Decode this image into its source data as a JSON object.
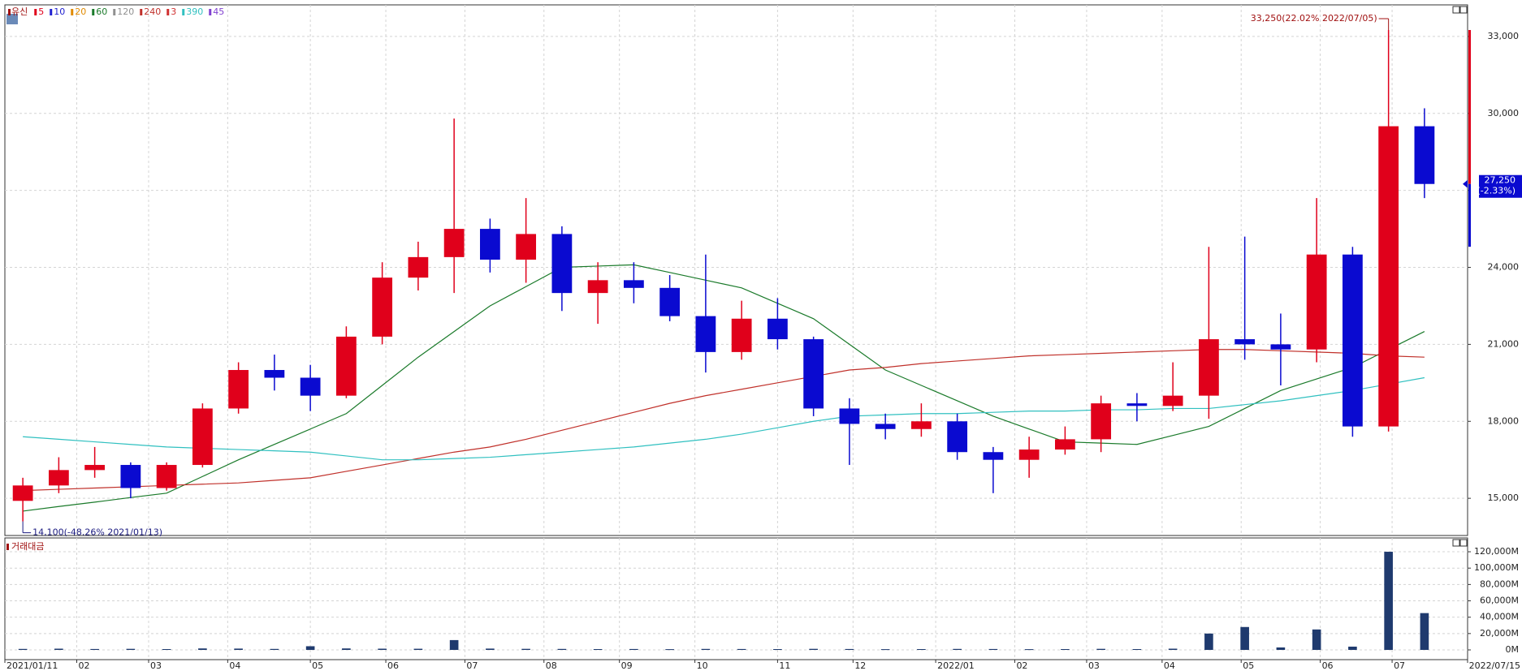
{
  "chart_data": {
    "type": "candlestick",
    "stock_name": "유신",
    "stock_color": "#a01010",
    "legend": [
      {
        "name": "5",
        "color": "#e0001b"
      },
      {
        "name": "10",
        "color": "#2020d0"
      },
      {
        "name": "20",
        "color": "#e08a00"
      },
      {
        "name": "60",
        "color": "#1a7a2a"
      },
      {
        "name": "120",
        "color": "#909090"
      },
      {
        "name": "240",
        "color": "#c0302a"
      },
      {
        "name": "3",
        "color": "#d03030"
      },
      {
        "name": "390",
        "color": "#30c0c0"
      },
      {
        "name": "45",
        "color": "#8040d0"
      }
    ],
    "up_color": "#e0001b",
    "down_color": "#0a0ad0",
    "open": [
      14900,
      15500,
      16100,
      16300,
      15400,
      16300,
      18500,
      20000,
      19700,
      19000,
      21300,
      23600,
      24400,
      25500,
      24300,
      25300,
      23000,
      23500,
      23200,
      22100,
      20700,
      22000,
      21200,
      18500,
      17900,
      17700,
      18000,
      16800,
      16500,
      16900,
      17300,
      18700,
      18600,
      19000,
      21200,
      21000,
      20800,
      24500,
      17800,
      29500
    ],
    "high": [
      15800,
      16600,
      17000,
      16400,
      16400,
      18700,
      20300,
      20600,
      20200,
      21700,
      24200,
      25000,
      29800,
      25900,
      26700,
      25600,
      24200,
      24200,
      23700,
      24500,
      22700,
      22800,
      21300,
      18900,
      18300,
      18700,
      18300,
      17000,
      17400,
      17800,
      19000,
      19100,
      20300,
      24800,
      25200,
      22200,
      26700,
      24800,
      33250,
      30200
    ],
    "low": [
      14100,
      15200,
      15800,
      15000,
      15300,
      16200,
      18300,
      19200,
      18400,
      18900,
      21000,
      23100,
      23000,
      23800,
      23400,
      22300,
      21800,
      22600,
      21900,
      19900,
      20400,
      20800,
      18200,
      16300,
      17300,
      17400,
      16500,
      15200,
      15800,
      16700,
      16800,
      18000,
      18400,
      18100,
      20400,
      19400,
      20300,
      17400,
      17600,
      26700
    ],
    "close": [
      15500,
      16100,
      16300,
      15400,
      16300,
      18500,
      20000,
      19700,
      19000,
      21300,
      23600,
      24400,
      25500,
      24300,
      25300,
      23000,
      23500,
      23200,
      22100,
      20700,
      22000,
      21200,
      18500,
      17900,
      17700,
      18000,
      16800,
      16500,
      16900,
      17300,
      18700,
      18600,
      19000,
      21200,
      21000,
      20800,
      24500,
      17800,
      29500,
      27250
    ],
    "series": [
      {
        "name": "60",
        "color": "#1a7a2a",
        "values": [
          14500,
          14680,
          14850,
          15030,
          15200,
          15850,
          16500,
          17100,
          17700,
          18300,
          19400,
          20500,
          21500,
          22500,
          23250,
          24000,
          24050,
          24100,
          23800,
          23500,
          23200,
          22600,
          22000,
          21000,
          20000,
          19400,
          18800,
          18200,
          17700,
          17200,
          17150,
          17100,
          17450,
          17800,
          18500,
          19200,
          19650,
          20100,
          20800,
          21500
        ]
      },
      {
        "name": "240",
        "color": "#c0302a",
        "values": [
          15300,
          15350,
          15400,
          15450,
          15500,
          15550,
          15600,
          15700,
          15800,
          16050,
          16300,
          16550,
          16800,
          17000,
          17300,
          17650,
          18000,
          18350,
          18700,
          19000,
          19250,
          19500,
          19750,
          20000,
          20100,
          20250,
          20350,
          20450,
          20550,
          20600,
          20650,
          20700,
          20750,
          20800,
          20800,
          20750,
          20700,
          20650,
          20550,
          20500
        ]
      },
      {
        "name": "390",
        "color": "#30c0c0",
        "values": [
          17400,
          17300,
          17200,
          17100,
          17000,
          16950,
          16900,
          16850,
          16800,
          16650,
          16500,
          16500,
          16550,
          16600,
          16700,
          16800,
          16900,
          17000,
          17150,
          17300,
          17500,
          17750,
          18000,
          18200,
          18250,
          18300,
          18300,
          18350,
          18400,
          18400,
          18450,
          18450,
          18500,
          18500,
          18650,
          18800,
          19000,
          19200,
          19450,
          19700
        ]
      }
    ],
    "ylim": [
      13550,
      34230
    ],
    "yticks": [
      {
        "value": 15000,
        "label": "15,000"
      },
      {
        "value": 18000,
        "label": "18,000"
      },
      {
        "value": 21000,
        "label": "21,000"
      },
      {
        "value": 24000,
        "label": "24,000"
      },
      {
        "value": 27000,
        "label": "27,000"
      },
      {
        "value": 30000,
        "label": "30,000"
      },
      {
        "value": 33000,
        "label": "33,000"
      }
    ],
    "xlim": [
      -0.5,
      40.2
    ],
    "xticks": [
      {
        "value": -0.5,
        "label": "2021/01/11"
      },
      {
        "value": 1.5,
        "label": "02"
      },
      {
        "value": 3.5,
        "label": "03"
      },
      {
        "value": 5.7,
        "label": "04"
      },
      {
        "value": 8.0,
        "label": "05"
      },
      {
        "value": 10.1,
        "label": "06"
      },
      {
        "value": 12.3,
        "label": "07"
      },
      {
        "value": 14.5,
        "label": "08"
      },
      {
        "value": 16.6,
        "label": "09"
      },
      {
        "value": 18.7,
        "label": "10"
      },
      {
        "value": 21.0,
        "label": "11"
      },
      {
        "value": 23.1,
        "label": "12"
      },
      {
        "value": 25.4,
        "label": "2022/01"
      },
      {
        "value": 27.6,
        "label": "02"
      },
      {
        "value": 29.6,
        "label": "03"
      },
      {
        "value": 31.7,
        "label": "04"
      },
      {
        "value": 33.9,
        "label": "05"
      },
      {
        "value": 36.1,
        "label": "06"
      },
      {
        "value": 38.1,
        "label": "07"
      },
      {
        "value": 40.2,
        "label": "2022/07/15"
      }
    ],
    "grid": true,
    "max_annotation": "33,250(22.02% 2022/07/05)",
    "min_annotation": "14,100(-48.26% 2021/01/13)",
    "current_price": {
      "value": 27250,
      "label": "27,250"
    },
    "current_change": "(-2.33%)",
    "volume": {
      "title": "거래대금",
      "color": "#1f3a6e",
      "values": [
        1200,
        1500,
        1100,
        1300,
        1000,
        1800,
        1600,
        1200,
        4500,
        1800,
        1500,
        1400,
        12000,
        1600,
        1300,
        1200,
        1000,
        1100,
        900,
        1200,
        1100,
        1000,
        1300,
        1100,
        900,
        1000,
        1200,
        1100,
        900,
        1000,
        1300,
        1000,
        1500,
        20000,
        28000,
        3000,
        25000,
        4000,
        120000,
        45000
      ],
      "ylim": [
        -11900,
        136900
      ],
      "yticks": [
        {
          "value": 0,
          "label": "0M"
        },
        {
          "value": 20000,
          "label": "20,000M"
        },
        {
          "value": 40000,
          "label": "40,000M"
        },
        {
          "value": 60000,
          "label": "60,000M"
        },
        {
          "value": 80000,
          "label": "80,000M"
        },
        {
          "value": 100000,
          "label": "100,000M"
        },
        {
          "value": 120000,
          "label": "120,000M"
        }
      ]
    }
  }
}
